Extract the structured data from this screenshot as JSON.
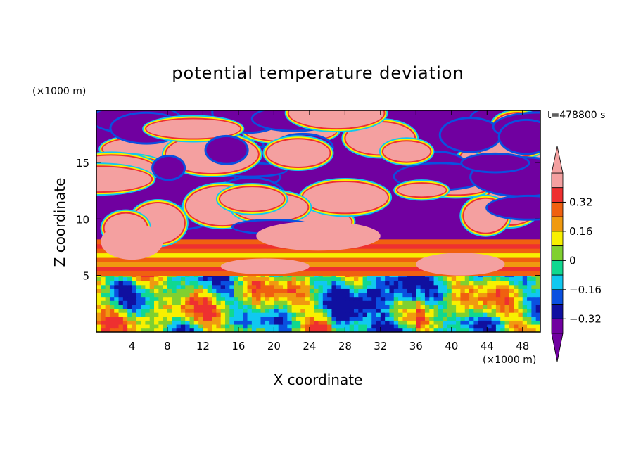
{
  "chart_data": {
    "type": "heatmap",
    "title": "potential temperature deviation",
    "xlabel": "X coordinate",
    "ylabel": "Z coordinate",
    "x_unit": "(×1000 m)",
    "y_unit": "(×1000 m)",
    "time_label": "t=478800 s",
    "xlim": [
      0,
      50
    ],
    "ylim": [
      0,
      19.6
    ],
    "x_ticks": [
      4,
      8,
      12,
      16,
      20,
      24,
      28,
      32,
      36,
      40,
      44,
      48
    ],
    "x_tick_labels": [
      "4",
      "8",
      "12",
      "16",
      "20",
      "24",
      "28",
      "32",
      "36",
      "40",
      "44",
      "48"
    ],
    "y_ticks": [
      5,
      10,
      15
    ],
    "y_tick_labels": [
      "5",
      "10",
      "15"
    ],
    "colorbar": {
      "levels": [
        -0.4,
        -0.32,
        -0.24,
        -0.16,
        -0.08,
        0,
        0.08,
        0.16,
        0.24,
        0.32,
        0.4
      ],
      "labels": [
        "0.32",
        "0.16",
        "0",
        "−0.16",
        "−0.32"
      ],
      "label_values": [
        0.32,
        0.16,
        0,
        -0.16,
        -0.32
      ],
      "colors_top_to_bottom": [
        "#f4a0a0",
        "#ee3030",
        "#f06010",
        "#f09a10",
        "#f8f000",
        "#80d030",
        "#10d890",
        "#10c8f0",
        "#0a50e0",
        "#1010a0",
        "#7000a0"
      ],
      "extend": "both"
    },
    "field_description_regions": [
      {
        "z_range": [
          0,
          5
        ],
        "character": "mixed, mostly cyan/green/blue with red and yellow patches"
      },
      {
        "z_range": [
          5.5,
          8.2
        ],
        "character": "banded orange/red layer"
      },
      {
        "z_range": [
          8.2,
          19.6
        ],
        "character": "alternating pink (>0.4) and purple (<-0.4) blobs with thin gradient rims"
      }
    ]
  }
}
